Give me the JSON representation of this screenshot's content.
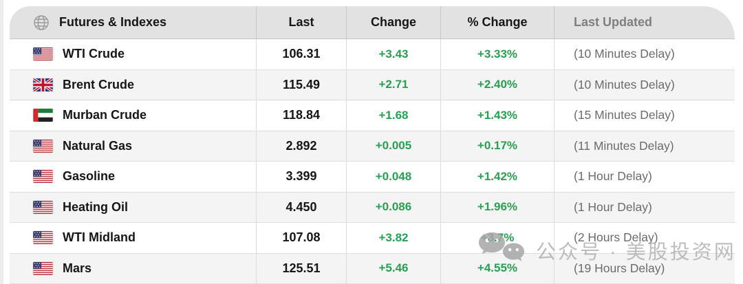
{
  "table": {
    "header": {
      "instruments": "Futures & Indexes",
      "last": "Last",
      "change": "Change",
      "pct_change": "% Change",
      "last_updated": "Last Updated"
    },
    "rows": [
      {
        "flag": "us",
        "name": "WTI Crude",
        "last": "106.31",
        "change": "+3.43",
        "pct_change": "+3.33%",
        "last_updated": "(10 Minutes Delay)"
      },
      {
        "flag": "gb",
        "name": "Brent Crude",
        "last": "115.49",
        "change": "+2.71",
        "pct_change": "+2.40%",
        "last_updated": "(10 Minutes Delay)"
      },
      {
        "flag": "ae",
        "name": "Murban Crude",
        "last": "118.84",
        "change": "+1.68",
        "pct_change": "+1.43%",
        "last_updated": "(15 Minutes Delay)"
      },
      {
        "flag": "us",
        "name": "Natural Gas",
        "last": "2.892",
        "change": "+0.005",
        "pct_change": "+0.17%",
        "last_updated": "(11 Minutes Delay)"
      },
      {
        "flag": "us",
        "name": "Gasoline",
        "last": "3.399",
        "change": "+0.048",
        "pct_change": "+1.42%",
        "last_updated": "(1 Hour Delay)"
      },
      {
        "flag": "us",
        "name": "Heating Oil",
        "last": "4.450",
        "change": "+0.086",
        "pct_change": "+1.96%",
        "last_updated": "(1 Hour Delay)"
      },
      {
        "flag": "us",
        "name": "WTI Midland",
        "last": "107.08",
        "change": "+3.82",
        "pct_change": "+3.7%",
        "last_updated": "(2 Hours Delay)"
      },
      {
        "flag": "us",
        "name": "Mars",
        "last": "125.51",
        "change": "+5.46",
        "pct_change": "+4.55%",
        "last_updated": "(19 Hours Delay)"
      }
    ]
  },
  "watermark": {
    "text": "公众号 · 美股投资网"
  },
  "icons": {
    "header_globe": "globe-icon",
    "watermark_logo": "wechat-icon",
    "flags": {
      "us": "us-flag",
      "gb": "uk-flag",
      "ae": "uae-flag"
    }
  },
  "colors": {
    "positive": "#27a051",
    "header_bg": "#e2e2e2",
    "row_alt_bg": "#f4f4f5",
    "muted_header": "#7f7f7f",
    "delay_text": "#6b6b6b",
    "watermark": "#b2b2b2"
  }
}
